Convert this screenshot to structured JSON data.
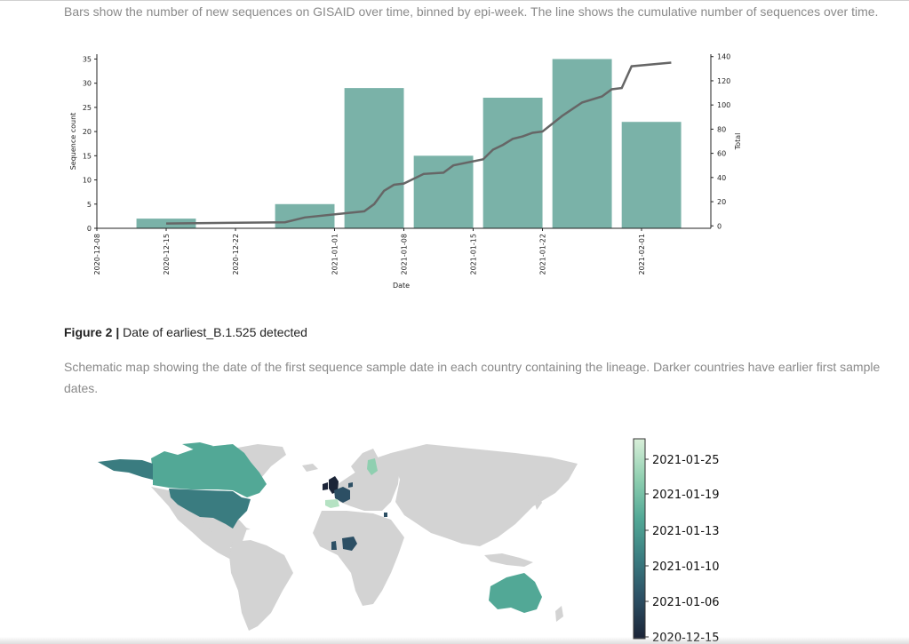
{
  "caption1": "Bars show the number of new sequences on GISAID over time, binned by epi-week. The line shows the cumulative number of sequences over time.",
  "figure2": {
    "title_bold": "Figure 2 |",
    "title_rest": " Date of earliest_B.1.525 detected",
    "caption": "Schematic map showing the date of the first sequence sample date in each country containing the lineage. Darker countries have earlier first sample dates."
  },
  "chart_data": [
    {
      "type": "bar",
      "xlabel": "Date",
      "ylabel": "Sequence count",
      "y2label": "Total",
      "ylim": [
        0,
        36
      ],
      "y2lim": [
        -2,
        142
      ],
      "yticks": [
        0,
        5,
        10,
        15,
        20,
        25,
        30,
        35
      ],
      "y2ticks": [
        0,
        20,
        40,
        60,
        80,
        100,
        120,
        140
      ],
      "xticks": [
        "2020-12-08",
        "2020-12-15",
        "2020-12-22",
        "2021-01-01",
        "2021-01-08",
        "2021-01-15",
        "2021-01-22",
        "2021-02-01"
      ],
      "bars": [
        {
          "week_start": "2020-12-12",
          "value": 2
        },
        {
          "week_start": "2020-12-26",
          "value": 5
        },
        {
          "week_start": "2021-01-02",
          "value": 29
        },
        {
          "week_start": "2021-01-09",
          "value": 15
        },
        {
          "week_start": "2021-01-16",
          "value": 27
        },
        {
          "week_start": "2021-01-23",
          "value": 35
        },
        {
          "week_start": "2021-01-30",
          "value": 22
        }
      ],
      "cumulative": [
        {
          "date": "2020-12-15",
          "total": 2
        },
        {
          "date": "2020-12-27",
          "total": 3
        },
        {
          "date": "2020-12-29",
          "total": 7
        },
        {
          "date": "2021-01-04",
          "total": 12
        },
        {
          "date": "2021-01-05",
          "total": 18
        },
        {
          "date": "2021-01-06",
          "total": 29
        },
        {
          "date": "2021-01-07",
          "total": 34
        },
        {
          "date": "2021-01-08",
          "total": 35
        },
        {
          "date": "2021-01-10",
          "total": 43
        },
        {
          "date": "2021-01-12",
          "total": 44
        },
        {
          "date": "2021-01-13",
          "total": 50
        },
        {
          "date": "2021-01-16",
          "total": 55
        },
        {
          "date": "2021-01-17",
          "total": 63
        },
        {
          "date": "2021-01-18",
          "total": 67
        },
        {
          "date": "2021-01-19",
          "total": 72
        },
        {
          "date": "2021-01-20",
          "total": 74
        },
        {
          "date": "2021-01-21",
          "total": 77
        },
        {
          "date": "2021-01-22",
          "total": 78
        },
        {
          "date": "2021-01-24",
          "total": 91
        },
        {
          "date": "2021-01-26",
          "total": 102
        },
        {
          "date": "2021-01-28",
          "total": 107
        },
        {
          "date": "2021-01-29",
          "total": 113
        },
        {
          "date": "2021-01-30",
          "total": 114
        },
        {
          "date": "2021-01-31",
          "total": 132
        },
        {
          "date": "2021-02-04",
          "total": 135
        }
      ],
      "bar_color": "#7ab2a8",
      "line_color": "#666666"
    },
    {
      "type": "choropleth",
      "colorbar_ticks": [
        "2021-01-25",
        "2021-01-19",
        "2021-01-13",
        "2021-01-10",
        "2021-01-06",
        "2020-12-15"
      ],
      "colorbar_colors": [
        "#d9efd9",
        "#8fcfb0",
        "#52a896",
        "#3a7c80",
        "#2c4f64",
        "#1b2437"
      ],
      "no_data_color": "#d3d3d3",
      "countries": [
        {
          "name": "Canada",
          "color": "#52a896"
        },
        {
          "name": "United States",
          "color": "#3a7c80"
        },
        {
          "name": "Alaska",
          "color": "#3a7c80"
        },
        {
          "name": "United Kingdom",
          "color": "#1b2437"
        },
        {
          "name": "Ireland",
          "color": "#1b2437"
        },
        {
          "name": "France",
          "color": "#2c4f64"
        },
        {
          "name": "Denmark",
          "color": "#2c4f64"
        },
        {
          "name": "Finland",
          "color": "#8fcfb0"
        },
        {
          "name": "Spain",
          "color": "#b5e2c3"
        },
        {
          "name": "Nigeria",
          "color": "#2c4f64"
        },
        {
          "name": "Ghana",
          "color": "#2c4f64"
        },
        {
          "name": "Australia",
          "color": "#52a896"
        },
        {
          "name": "Jordan",
          "color": "#2c4f64"
        }
      ]
    }
  ]
}
